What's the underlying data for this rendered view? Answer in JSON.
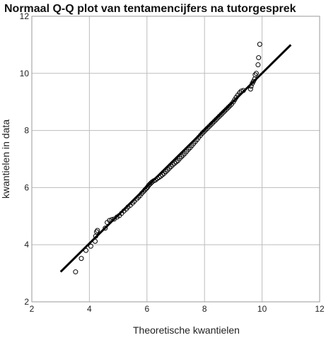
{
  "chart_data": {
    "type": "scatter",
    "title": "Normaal Q-Q plot van tentamencijfers na tutorgesprek",
    "xlabel": "Theoretische kwantielen",
    "ylabel": "kwantielen in data",
    "xlim": [
      2,
      12
    ],
    "ylim": [
      2,
      12
    ],
    "xticks": [
      "2",
      "4",
      "6",
      "8",
      "10",
      "12"
    ],
    "yticks": [
      "2",
      "4",
      "6",
      "8",
      "10",
      "12"
    ],
    "grid": true,
    "reference_line": {
      "from": [
        3.0,
        3.05
      ],
      "to": [
        11.0,
        11.0
      ]
    },
    "points": [
      [
        3.52,
        3.05
      ],
      [
        3.72,
        3.52
      ],
      [
        3.88,
        3.8
      ],
      [
        4.05,
        3.95
      ],
      [
        4.2,
        4.12
      ],
      [
        4.22,
        4.3
      ],
      [
        4.25,
        4.45
      ],
      [
        4.28,
        4.5
      ],
      [
        4.55,
        4.58
      ],
      [
        4.62,
        4.78
      ],
      [
        4.7,
        4.85
      ],
      [
        4.78,
        4.88
      ],
      [
        4.86,
        4.9
      ],
      [
        4.96,
        4.97
      ],
      [
        5.04,
        5.02
      ],
      [
        5.12,
        5.1
      ],
      [
        5.2,
        5.18
      ],
      [
        5.28,
        5.25
      ],
      [
        5.34,
        5.32
      ],
      [
        5.42,
        5.38
      ],
      [
        5.5,
        5.46
      ],
      [
        5.56,
        5.52
      ],
      [
        5.64,
        5.6
      ],
      [
        5.7,
        5.66
      ],
      [
        5.76,
        5.72
      ],
      [
        5.82,
        5.8
      ],
      [
        5.88,
        5.86
      ],
      [
        5.93,
        5.92
      ],
      [
        5.98,
        5.97
      ],
      [
        6.02,
        6.02
      ],
      [
        6.06,
        6.08
      ],
      [
        6.1,
        6.12
      ],
      [
        6.14,
        6.16
      ],
      [
        6.18,
        6.2
      ],
      [
        6.24,
        6.24
      ],
      [
        6.3,
        6.27
      ],
      [
        6.36,
        6.32
      ],
      [
        6.42,
        6.36
      ],
      [
        6.48,
        6.4
      ],
      [
        6.54,
        6.45
      ],
      [
        6.6,
        6.5
      ],
      [
        6.66,
        6.56
      ],
      [
        6.72,
        6.62
      ],
      [
        6.78,
        6.68
      ],
      [
        6.84,
        6.74
      ],
      [
        6.9,
        6.8
      ],
      [
        6.96,
        6.85
      ],
      [
        7.02,
        6.9
      ],
      [
        7.08,
        6.95
      ],
      [
        7.14,
        7.02
      ],
      [
        7.2,
        7.08
      ],
      [
        7.26,
        7.14
      ],
      [
        7.32,
        7.2
      ],
      [
        7.38,
        7.27
      ],
      [
        7.44,
        7.34
      ],
      [
        7.5,
        7.4
      ],
      [
        7.56,
        7.47
      ],
      [
        7.62,
        7.54
      ],
      [
        7.68,
        7.61
      ],
      [
        7.74,
        7.68
      ],
      [
        7.8,
        7.76
      ],
      [
        7.86,
        7.83
      ],
      [
        7.92,
        7.9
      ],
      [
        7.98,
        7.96
      ],
      [
        8.04,
        8.02
      ],
      [
        8.1,
        8.08
      ],
      [
        8.16,
        8.14
      ],
      [
        8.22,
        8.2
      ],
      [
        8.28,
        8.26
      ],
      [
        8.34,
        8.32
      ],
      [
        8.4,
        8.38
      ],
      [
        8.46,
        8.44
      ],
      [
        8.52,
        8.5
      ],
      [
        8.58,
        8.56
      ],
      [
        8.64,
        8.62
      ],
      [
        8.7,
        8.68
      ],
      [
        8.76,
        8.74
      ],
      [
        8.82,
        8.8
      ],
      [
        8.88,
        8.86
      ],
      [
        8.94,
        8.92
      ],
      [
        9.0,
        9.0
      ],
      [
        9.05,
        9.08
      ],
      [
        9.1,
        9.16
      ],
      [
        9.16,
        9.24
      ],
      [
        9.22,
        9.32
      ],
      [
        9.28,
        9.38
      ],
      [
        9.35,
        9.4
      ],
      [
        9.6,
        9.45
      ],
      [
        9.62,
        9.55
      ],
      [
        9.66,
        9.65
      ],
      [
        9.7,
        9.72
      ],
      [
        9.74,
        9.8
      ],
      [
        9.76,
        9.95
      ],
      [
        9.8,
        10.0
      ],
      [
        9.86,
        10.3
      ],
      [
        9.88,
        10.55
      ],
      [
        9.92,
        11.02
      ]
    ]
  }
}
